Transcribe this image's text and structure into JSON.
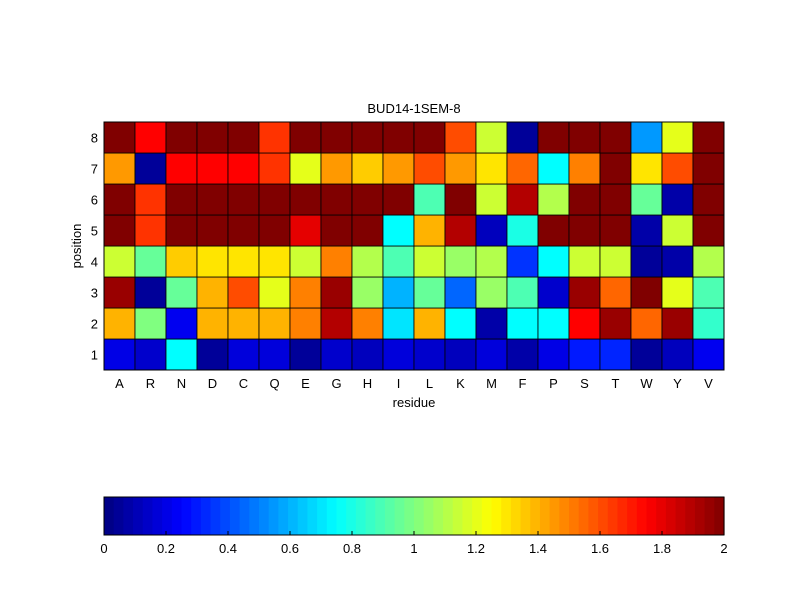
{
  "chart_data": {
    "type": "heatmap",
    "title": "BUD14-1SEM-8",
    "xlabel": "residue",
    "ylabel": "position",
    "x_categories": [
      "A",
      "R",
      "N",
      "D",
      "C",
      "Q",
      "E",
      "G",
      "H",
      "I",
      "L",
      "K",
      "M",
      "F",
      "P",
      "S",
      "T",
      "W",
      "Y",
      "V"
    ],
    "y_categories": [
      "1",
      "2",
      "3",
      "4",
      "5",
      "6",
      "7",
      "8"
    ],
    "values": [
      [
        0.2,
        0.15,
        0.75,
        0.05,
        0.18,
        0.18,
        0.05,
        0.15,
        0.12,
        0.18,
        0.15,
        0.12,
        0.18,
        0.08,
        0.2,
        0.3,
        0.32,
        0.05,
        0.12,
        0.22
      ],
      [
        1.4,
        1.0,
        0.22,
        1.4,
        1.4,
        1.4,
        1.5,
        1.9,
        1.5,
        0.7,
        1.4,
        0.75,
        0.08,
        0.75,
        0.75,
        1.75,
        1.95,
        1.55,
        1.95,
        0.85
      ],
      [
        1.95,
        0.05,
        0.95,
        1.4,
        1.6,
        1.2,
        1.5,
        1.95,
        1.05,
        0.6,
        0.95,
        0.45,
        1.05,
        0.9,
        0.15,
        1.95,
        1.55,
        2.0,
        1.2,
        0.9
      ],
      [
        1.15,
        0.95,
        1.35,
        1.3,
        1.3,
        1.3,
        1.15,
        1.5,
        1.1,
        0.9,
        1.15,
        1.05,
        1.1,
        0.35,
        0.75,
        1.15,
        1.15,
        0.05,
        0.08,
        1.1
      ],
      [
        2.0,
        1.65,
        2.0,
        2.0,
        2.0,
        2.0,
        1.8,
        2.0,
        2.0,
        0.75,
        1.4,
        1.9,
        0.12,
        0.8,
        2.0,
        2.0,
        2.0,
        0.08,
        1.15,
        2.0
      ],
      [
        2.0,
        1.65,
        2.0,
        2.0,
        2.0,
        2.0,
        2.0,
        2.0,
        2.0,
        2.0,
        0.9,
        2.0,
        1.15,
        1.9,
        1.1,
        2.0,
        2.0,
        0.95,
        0.08,
        2.0
      ],
      [
        1.45,
        0.05,
        1.75,
        1.75,
        1.75,
        1.65,
        1.2,
        1.45,
        1.35,
        1.45,
        1.6,
        1.45,
        1.3,
        1.55,
        0.75,
        1.5,
        2.0,
        1.3,
        1.6,
        2.0
      ],
      [
        2.0,
        1.75,
        2.0,
        2.0,
        2.0,
        1.65,
        2.0,
        2.0,
        2.0,
        2.0,
        2.0,
        1.6,
        1.15,
        0.05,
        2.0,
        2.0,
        2.0,
        0.55,
        1.2,
        2.0
      ]
    ],
    "colorbar": {
      "range": [
        0,
        2
      ],
      "ticks": [
        "0",
        "0.2",
        "0.4",
        "0.6",
        "0.8",
        "1",
        "1.2",
        "1.4",
        "1.6",
        "1.8",
        "2"
      ],
      "colormap": "jet"
    },
    "grid": false
  }
}
